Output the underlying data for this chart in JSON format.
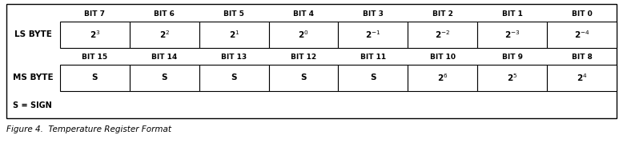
{
  "fig_width": 7.78,
  "fig_height": 1.84,
  "dpi": 100,
  "background_color": "#ffffff",
  "title": "Figure 4.  Temperature Register Format",
  "sign_note": "S = SIGN",
  "ls_label": "LS BYTE",
  "ms_label": "MS BYTE",
  "ls_bit_headers": [
    "BIT 7",
    "BIT 6",
    "BIT 5",
    "BIT 4",
    "BIT 3",
    "BIT 2",
    "BIT 1",
    "BIT 0"
  ],
  "ms_bit_headers": [
    "BIT 15",
    "BIT 14",
    "BIT 13",
    "BIT 12",
    "BIT 11",
    "BIT 10",
    "BIT 9",
    "BIT 8"
  ],
  "ls_values": [
    "2$^3$",
    "2$^2$",
    "2$^1$",
    "2$^0$",
    "2$^{-1}$",
    "2$^{-2}$",
    "2$^{-3}$",
    "2$^{-4}$"
  ],
  "ms_values": [
    "S",
    "S",
    "S",
    "S",
    "S",
    "2$^6$",
    "2$^5$",
    "2$^4$"
  ],
  "text_color": "#000000",
  "line_color": "#000000",
  "font_size_header": 6.5,
  "font_size_value": 7.5,
  "font_size_label": 7.5,
  "font_size_title": 7.5,
  "font_size_note": 7.0
}
